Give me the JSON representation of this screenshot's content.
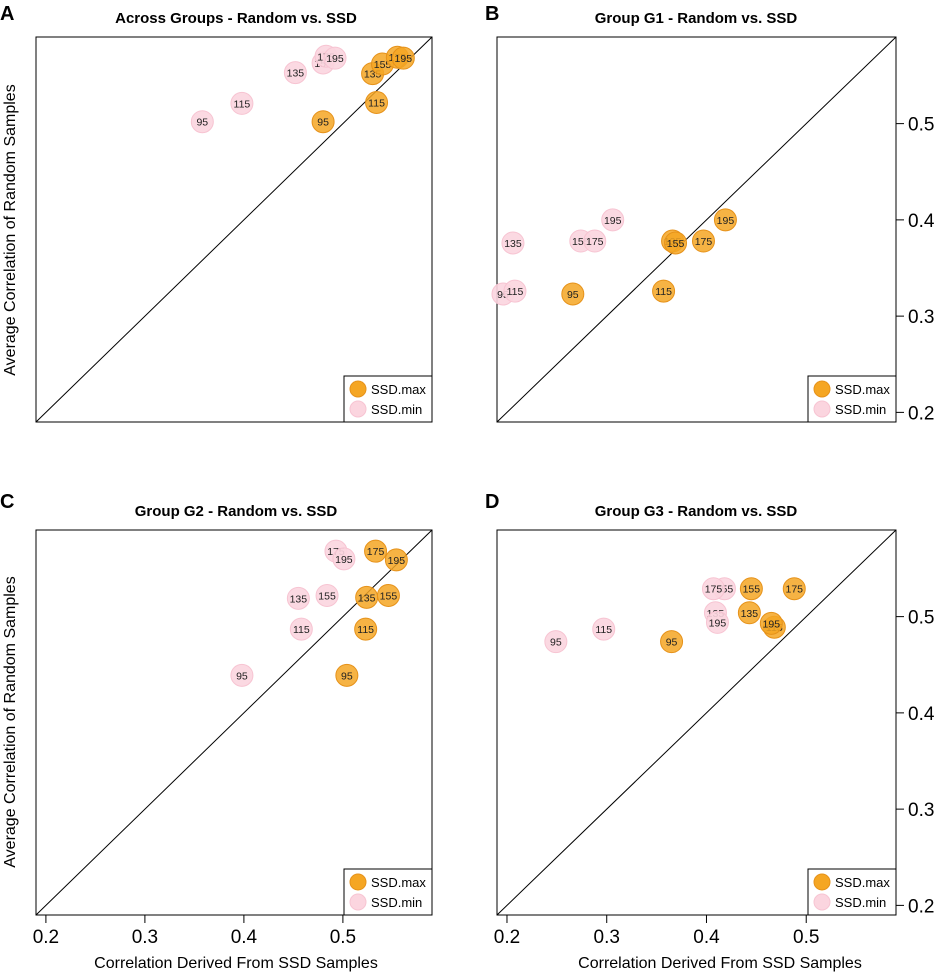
{
  "figure": {
    "xlabel": "Correlation Derived From SSD Samples",
    "ylabel": "Average Correlation of Random Samples",
    "colors": {
      "max": "#f5a623",
      "max_stroke": "#e6921a",
      "min": "#fbd5df",
      "min_stroke": "#f7c4d2"
    }
  },
  "chart_data": [
    {
      "panel": "A",
      "type": "scatter",
      "title": "Across Groups - Random vs. SSD",
      "xlim": [
        0.19,
        0.59
      ],
      "ylim": [
        0.19,
        0.59
      ],
      "xticks": [],
      "yticks": [],
      "diagonal": true,
      "legend": [
        "SSD.max",
        "SSD.min"
      ],
      "series": [
        {
          "name": "SSD.max",
          "points": [
            {
              "x": 0.48,
              "y": 0.502,
              "label": "95"
            },
            {
              "x": 0.534,
              "y": 0.522,
              "label": "115"
            },
            {
              "x": 0.53,
              "y": 0.552,
              "label": "135"
            },
            {
              "x": 0.54,
              "y": 0.562,
              "label": "155"
            },
            {
              "x": 0.555,
              "y": 0.569,
              "label": "175"
            },
            {
              "x": 0.561,
              "y": 0.568,
              "label": "195"
            }
          ]
        },
        {
          "name": "SSD.min",
          "points": [
            {
              "x": 0.358,
              "y": 0.502,
              "label": "95"
            },
            {
              "x": 0.398,
              "y": 0.521,
              "label": "115"
            },
            {
              "x": 0.452,
              "y": 0.553,
              "label": "135"
            },
            {
              "x": 0.48,
              "y": 0.563,
              "label": "155"
            },
            {
              "x": 0.483,
              "y": 0.57,
              "label": "175"
            },
            {
              "x": 0.492,
              "y": 0.568,
              "label": "195"
            }
          ]
        }
      ]
    },
    {
      "panel": "B",
      "type": "scatter",
      "title": "Group G1 - Random vs. SSD",
      "xlim": [
        0.19,
        0.59
      ],
      "ylim": [
        0.19,
        0.59
      ],
      "xticks": [],
      "yticks": [
        0.2,
        0.3,
        0.4,
        0.5
      ],
      "diagonal": true,
      "legend": [
        "SSD.max",
        "SSD.min"
      ],
      "series": [
        {
          "name": "SSD.max",
          "points": [
            {
              "x": 0.266,
              "y": 0.323,
              "label": "95"
            },
            {
              "x": 0.357,
              "y": 0.326,
              "label": "115"
            },
            {
              "x": 0.366,
              "y": 0.378,
              "label": "135"
            },
            {
              "x": 0.369,
              "y": 0.376,
              "label": "155"
            },
            {
              "x": 0.397,
              "y": 0.378,
              "label": "175"
            },
            {
              "x": 0.419,
              "y": 0.4,
              "label": "195"
            }
          ]
        },
        {
          "name": "SSD.min",
          "points": [
            {
              "x": 0.196,
              "y": 0.323,
              "label": "95"
            },
            {
              "x": 0.208,
              "y": 0.326,
              "label": "115"
            },
            {
              "x": 0.206,
              "y": 0.376,
              "label": "135"
            },
            {
              "x": 0.274,
              "y": 0.378,
              "label": "155"
            },
            {
              "x": 0.288,
              "y": 0.378,
              "label": "175"
            },
            {
              "x": 0.306,
              "y": 0.4,
              "label": "195"
            }
          ]
        }
      ]
    },
    {
      "panel": "C",
      "type": "scatter",
      "title": "Group G2 - Random vs. SSD",
      "xlim": [
        0.19,
        0.59
      ],
      "ylim": [
        0.19,
        0.59
      ],
      "xticks": [
        0.2,
        0.3,
        0.4,
        0.5
      ],
      "yticks": [],
      "diagonal": true,
      "legend": [
        "SSD.max",
        "SSD.min"
      ],
      "series": [
        {
          "name": "SSD.max",
          "points": [
            {
              "x": 0.504,
              "y": 0.439,
              "label": "95"
            },
            {
              "x": 0.523,
              "y": 0.487,
              "label": "115"
            },
            {
              "x": 0.524,
              "y": 0.52,
              "label": "135"
            },
            {
              "x": 0.546,
              "y": 0.522,
              "label": "155"
            },
            {
              "x": 0.533,
              "y": 0.568,
              "label": "175"
            },
            {
              "x": 0.554,
              "y": 0.559,
              "label": "195"
            }
          ]
        },
        {
          "name": "SSD.min",
          "points": [
            {
              "x": 0.398,
              "y": 0.439,
              "label": "95"
            },
            {
              "x": 0.458,
              "y": 0.487,
              "label": "115"
            },
            {
              "x": 0.455,
              "y": 0.519,
              "label": "135"
            },
            {
              "x": 0.484,
              "y": 0.522,
              "label": "155"
            },
            {
              "x": 0.493,
              "y": 0.568,
              "label": "175"
            },
            {
              "x": 0.501,
              "y": 0.56,
              "label": "195"
            }
          ]
        }
      ]
    },
    {
      "panel": "D",
      "type": "scatter",
      "title": "Group G3 - Random vs. SSD",
      "xlim": [
        0.19,
        0.59
      ],
      "ylim": [
        0.19,
        0.59
      ],
      "xticks": [
        0.2,
        0.3,
        0.4,
        0.5
      ],
      "yticks": [
        0.2,
        0.3,
        0.4,
        0.5
      ],
      "diagonal": true,
      "legend": [
        "SSD.max",
        "SSD.min"
      ],
      "series": [
        {
          "name": "SSD.max",
          "points": [
            {
              "x": 0.365,
              "y": 0.474,
              "label": "95"
            },
            {
              "x": 0.468,
              "y": 0.489,
              "label": "115"
            },
            {
              "x": 0.443,
              "y": 0.504,
              "label": "135"
            },
            {
              "x": 0.445,
              "y": 0.529,
              "label": "155"
            },
            {
              "x": 0.488,
              "y": 0.529,
              "label": "175"
            },
            {
              "x": 0.465,
              "y": 0.493,
              "label": "195"
            }
          ]
        },
        {
          "name": "SSD.min",
          "points": [
            {
              "x": 0.249,
              "y": 0.474,
              "label": "95"
            },
            {
              "x": 0.297,
              "y": 0.487,
              "label": "115"
            },
            {
              "x": 0.409,
              "y": 0.504,
              "label": "135"
            },
            {
              "x": 0.418,
              "y": 0.529,
              "label": "155"
            },
            {
              "x": 0.407,
              "y": 0.529,
              "label": "175"
            },
            {
              "x": 0.411,
              "y": 0.494,
              "label": "195"
            }
          ]
        }
      ]
    }
  ]
}
